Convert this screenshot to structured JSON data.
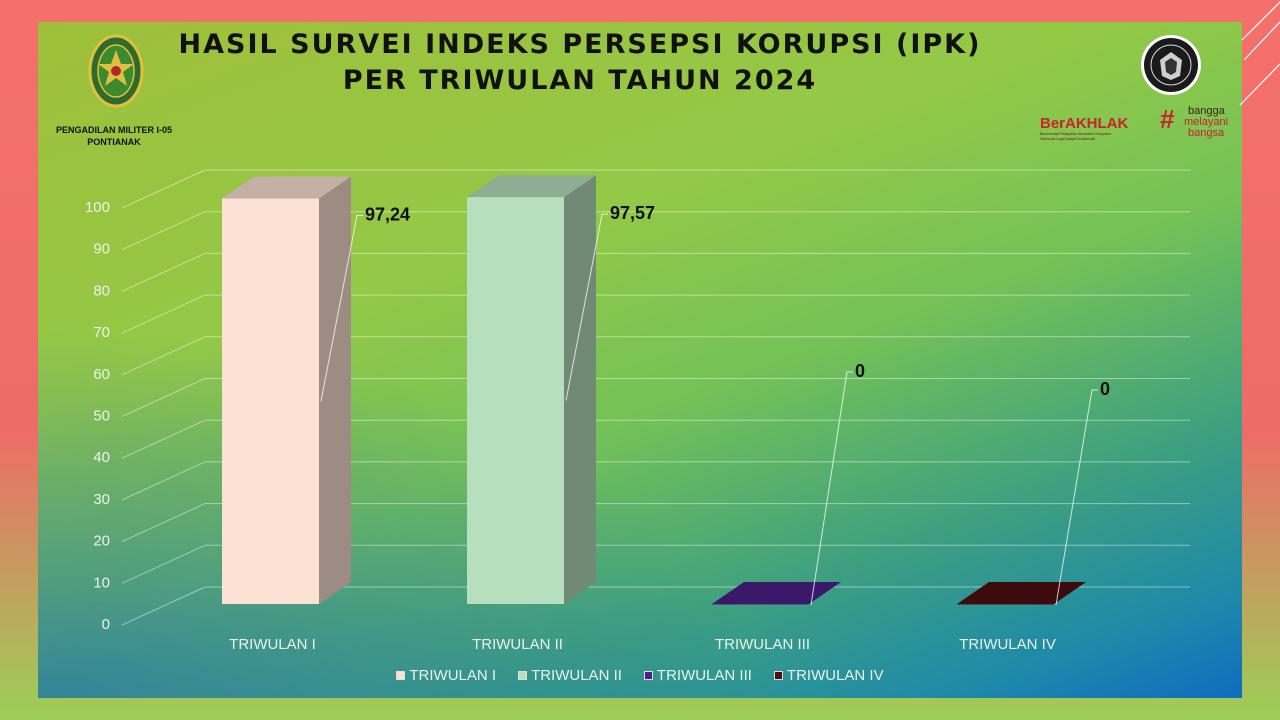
{
  "header": {
    "title_line1": "HASIL SURVEI INDEKS PERSEPSI KORUPSI (IPK)",
    "title_line2": "PER TRIWULAN TAHUN 2024",
    "org_line1": "PENGADILAN MILITER I-05",
    "org_line2": "PONTIANAK"
  },
  "logos": {
    "left_icon": "court-emblem-icon",
    "right_icon": "kemenpan-seal-icon",
    "berakhlak_text": "BerAKHLAK",
    "berakhlak_sub1": "Berorientasi Pelayanan Akuntabel Kompeten",
    "berakhlak_sub2": "Harmonis Loyal Adaptif Kolaboratif",
    "tagline1": "bangga",
    "tagline2": "melayani",
    "tagline3": "bangsa"
  },
  "colors": {
    "triwulan_1": "#fbe2d4",
    "triwulan_2": "#b6dfbd",
    "triwulan_3": "#4b1f86",
    "triwulan_4": "#4e0e0f",
    "accent_red": "#c8242c"
  },
  "chart_data": {
    "type": "bar",
    "categories": [
      "TRIWULAN I",
      "TRIWULAN II",
      "TRIWULAN III",
      "TRIWULAN IV"
    ],
    "values": [
      97.24,
      97.57,
      0,
      0
    ],
    "data_labels": [
      "97,24",
      "97,57",
      "0",
      "0"
    ],
    "ylim": [
      0,
      100
    ],
    "yticks": [
      "0",
      "10",
      "20",
      "30",
      "40",
      "50",
      "60",
      "70",
      "80",
      "90",
      "100"
    ],
    "legend": [
      "TRIWULAN I",
      "TRIWULAN II",
      "TRIWULAN III",
      "TRIWULAN IV"
    ],
    "legend_position": "bottom",
    "style": "3d-column",
    "grid": true
  }
}
